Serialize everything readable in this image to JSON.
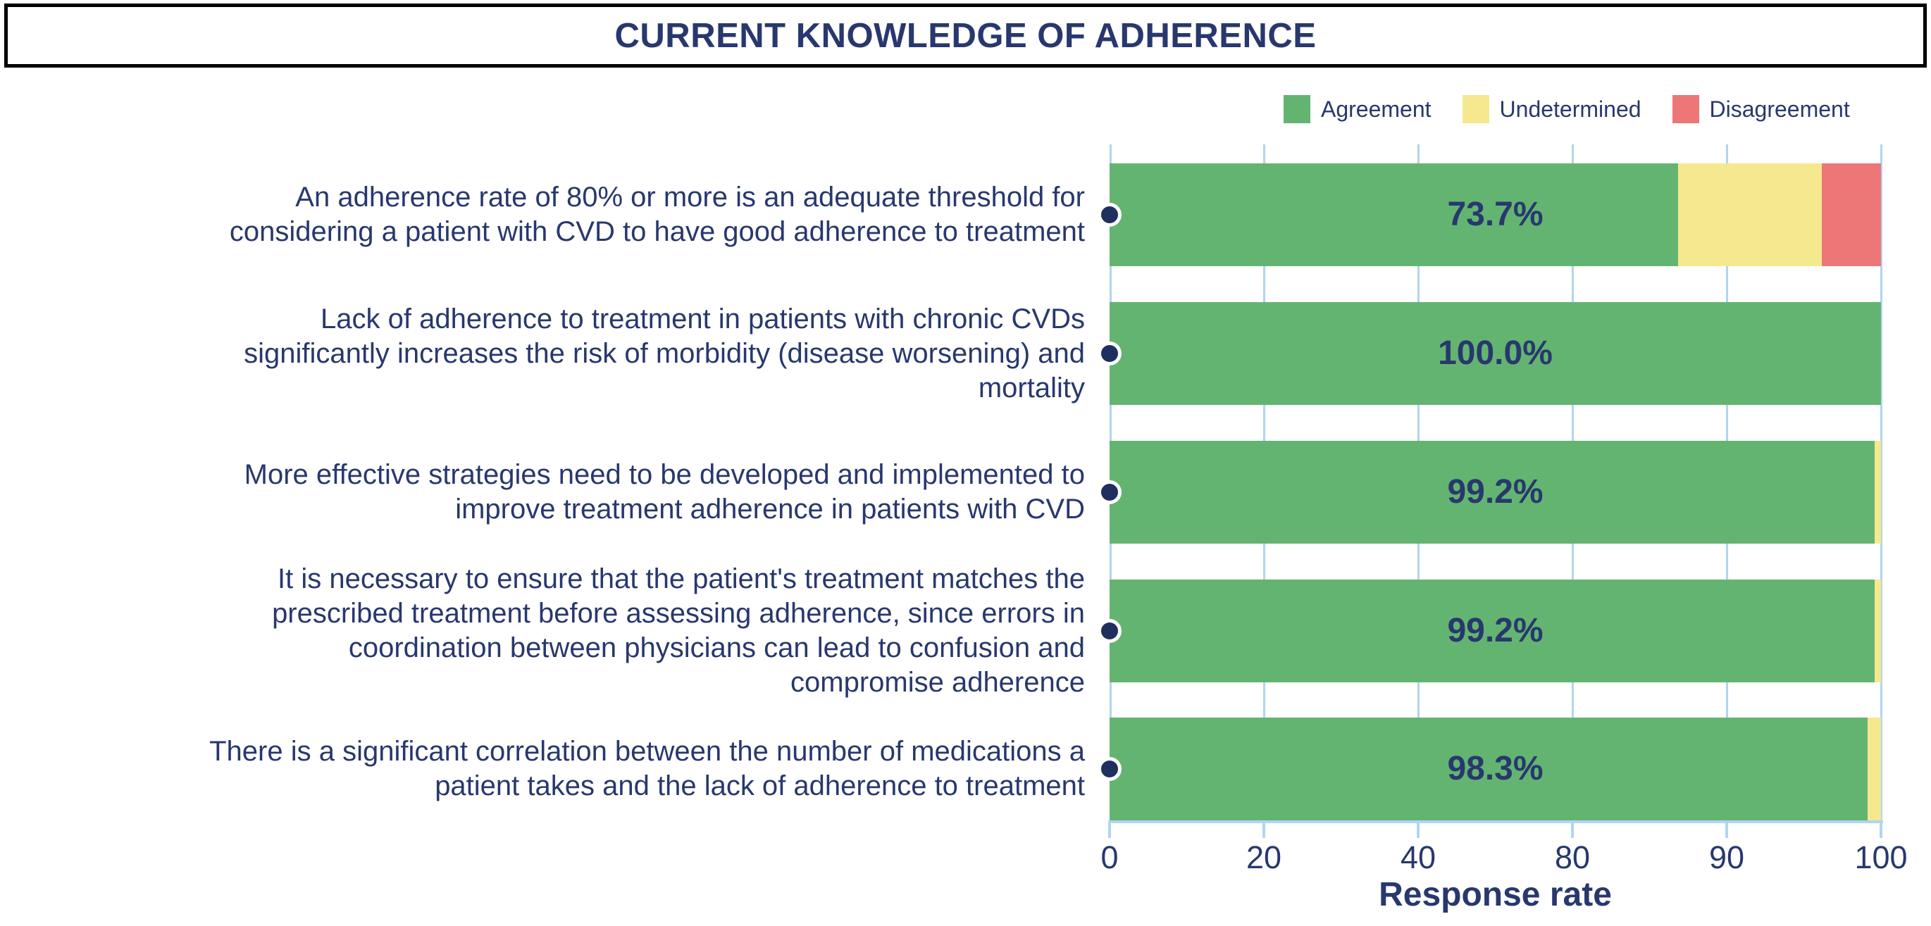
{
  "title": "CURRENT KNOWLEDGE OF ADHERENCE",
  "chart_data": {
    "type": "bar",
    "orientation": "horizontal",
    "stacked": true,
    "title": "CURRENT KNOWLEDGE OF ADHERENCE",
    "xlabel": "Response rate",
    "xlim": [
      0,
      100
    ],
    "x_tick_labels": [
      "0",
      "20",
      "40",
      "80",
      "90",
      "100"
    ],
    "grid": true,
    "legend_position": "top-right",
    "categories": [
      "An adherence rate of 80% or more is an adequate threshold for\nconsidering a patient with CVD to have good adherence to treatment",
      "Lack of adherence to treatment in patients with chronic CVDs\nsignificantly increases the risk of morbidity (disease worsening) and\nmortality",
      "More effective strategies need to be developed and implemented to\nimprove treatment adherence in patients with CVD",
      "It is necessary to ensure that the patient's treatment matches the\nprescribed treatment before assessing adherence, since errors in\ncoordination between physicians can lead to confusion and\ncompromise adherence",
      "There is a significant correlation between the number of medications a\npatient takes and the lack of adherence to treatment"
    ],
    "series": [
      {
        "name": "Agreement",
        "color": "#64B471",
        "values": [
          73.7,
          100.0,
          99.2,
          99.2,
          98.3
        ]
      },
      {
        "name": "Undetermined",
        "color": "#F6E88E",
        "values": [
          18.6,
          0.0,
          0.8,
          0.8,
          1.7
        ]
      },
      {
        "name": "Disagreement",
        "color": "#ED7677",
        "values": [
          7.7,
          0.0,
          0.0,
          0.0,
          0.0
        ]
      }
    ],
    "bar_labels": [
      "73.7%",
      "100.0%",
      "99.2%",
      "99.2%",
      "98.3%"
    ]
  },
  "colors": {
    "text_navy": "#28386E",
    "marker_navy": "#1F2F5E",
    "axis_blue": "#B0D5F0",
    "title_border": "#000000",
    "background": "#FFFFFF"
  }
}
